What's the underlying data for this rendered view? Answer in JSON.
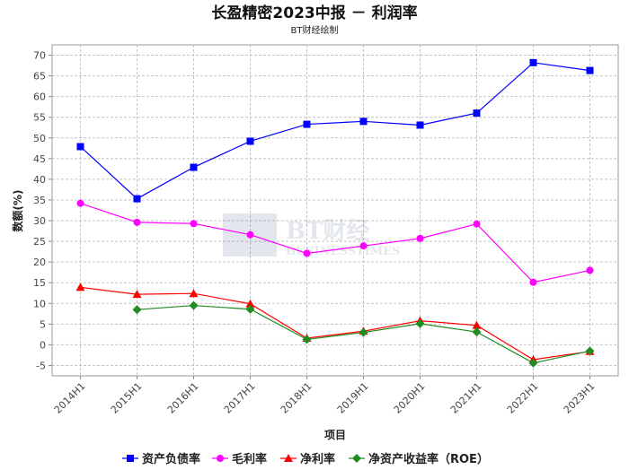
{
  "chart_data": {
    "type": "line",
    "title": "长盈精密2023中报 － 利润率",
    "subtitle": "BT财经绘制",
    "watermark": {
      "main": "BT财经",
      "sub": "BUSINESSTIMES"
    },
    "xlabel": "项目",
    "ylabel": "数额(%)",
    "ylim": [
      -7.5,
      72.5
    ],
    "yticks": [
      -5,
      0,
      5,
      10,
      15,
      20,
      25,
      30,
      35,
      40,
      45,
      50,
      55,
      60,
      65,
      70
    ],
    "grid": true,
    "legend_position": "bottom",
    "categories": [
      "2014H1",
      "2015H1",
      "2016H1",
      "2017H1",
      "2018H1",
      "2019H1",
      "2020H1",
      "2021H1",
      "2022H1",
      "2023H1"
    ],
    "series": [
      {
        "name": "资产负债率",
        "color": "#0000ff",
        "marker": "square",
        "values": [
          47.9,
          35.3,
          42.9,
          49.2,
          53.3,
          54.0,
          53.1,
          56.0,
          68.2,
          66.3
        ]
      },
      {
        "name": "毛利率",
        "color": "#ff00ff",
        "marker": "circle",
        "values": [
          34.2,
          29.6,
          29.3,
          26.6,
          22.1,
          23.9,
          25.7,
          29.2,
          15.1,
          18.0
        ]
      },
      {
        "name": "净利率",
        "color": "#ff0000",
        "marker": "triangle",
        "values": [
          13.9,
          12.2,
          12.4,
          9.9,
          1.6,
          3.3,
          5.8,
          4.7,
          -3.6,
          -1.6
        ]
      },
      {
        "name": "净资产收益率（ROE）",
        "color": "#228b22",
        "marker": "diamond",
        "values": [
          null,
          8.5,
          9.5,
          8.6,
          1.3,
          3.0,
          5.1,
          3.1,
          -4.4,
          -1.5
        ]
      }
    ]
  }
}
